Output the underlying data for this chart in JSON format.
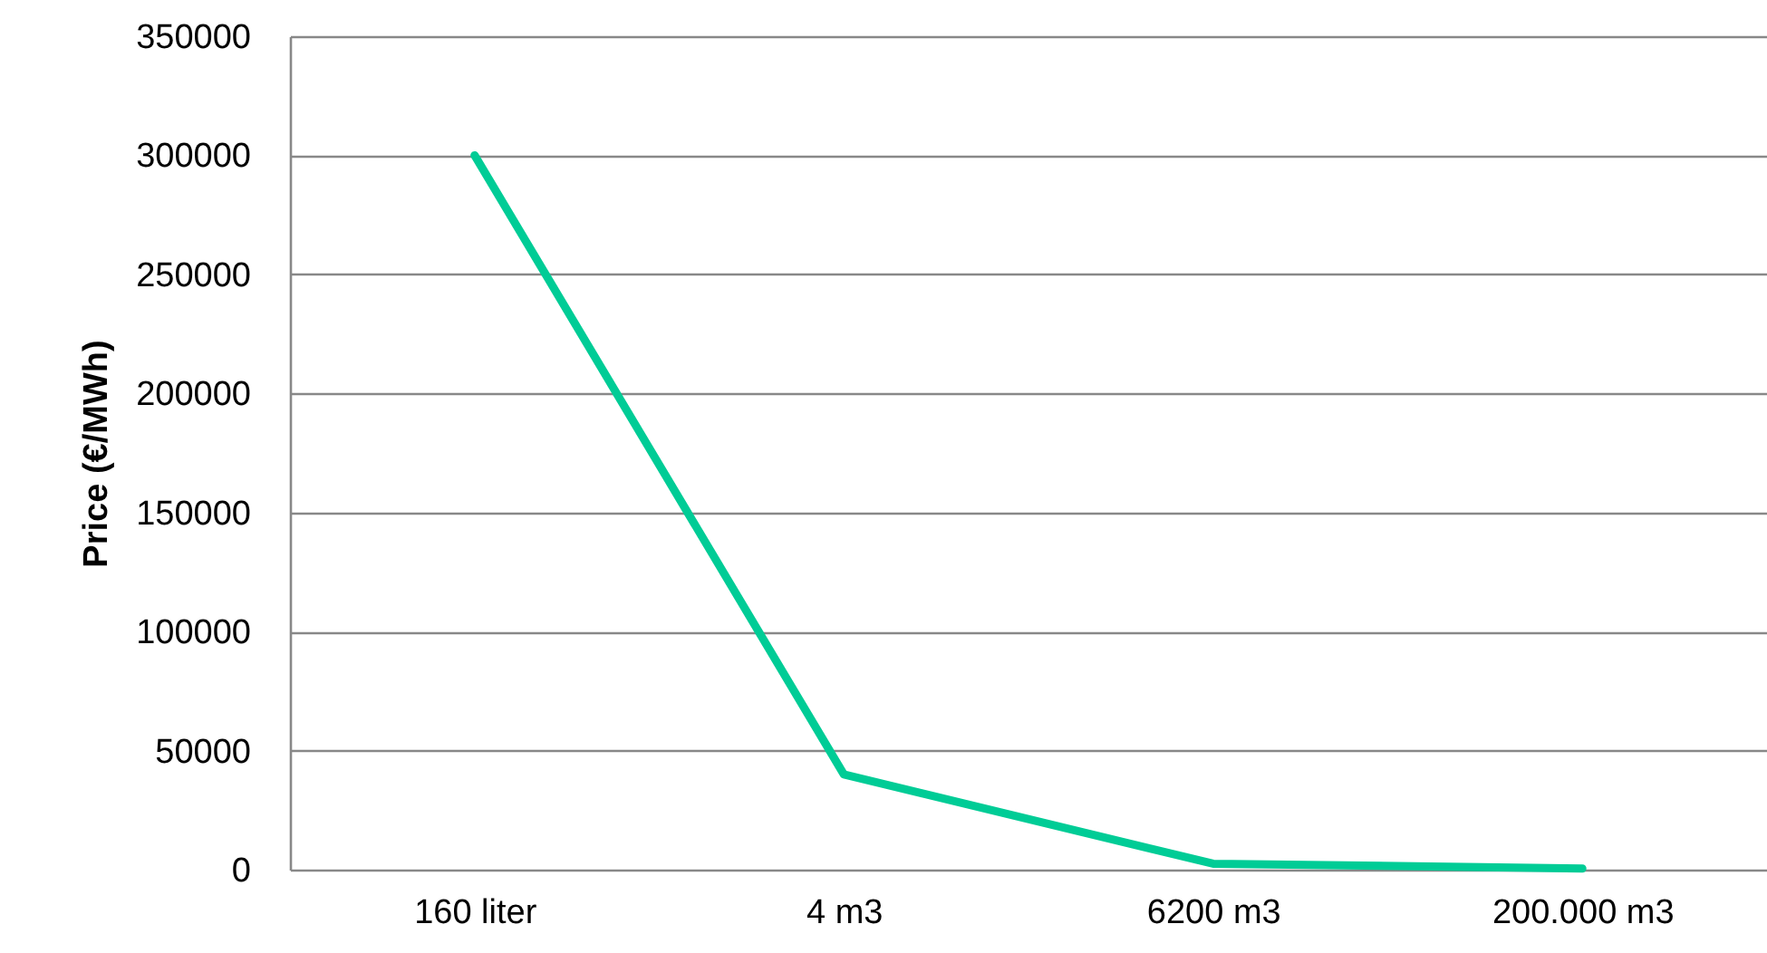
{
  "chart_data": {
    "type": "line",
    "ylabel": "Price (€/MWh)",
    "categories": [
      "160 liter",
      "4 m3",
      "6200 m3",
      "200.000 m3"
    ],
    "series": [
      {
        "color": "#00cc96",
        "values": [
          300000,
          40000,
          2500,
          500
        ]
      }
    ],
    "ylim": [
      0,
      350000
    ],
    "yticks": [
      0,
      50000,
      100000,
      150000,
      200000,
      250000,
      300000,
      350000
    ],
    "grid": "y",
    "legend": false,
    "marker": "none",
    "line_style": "solid"
  }
}
